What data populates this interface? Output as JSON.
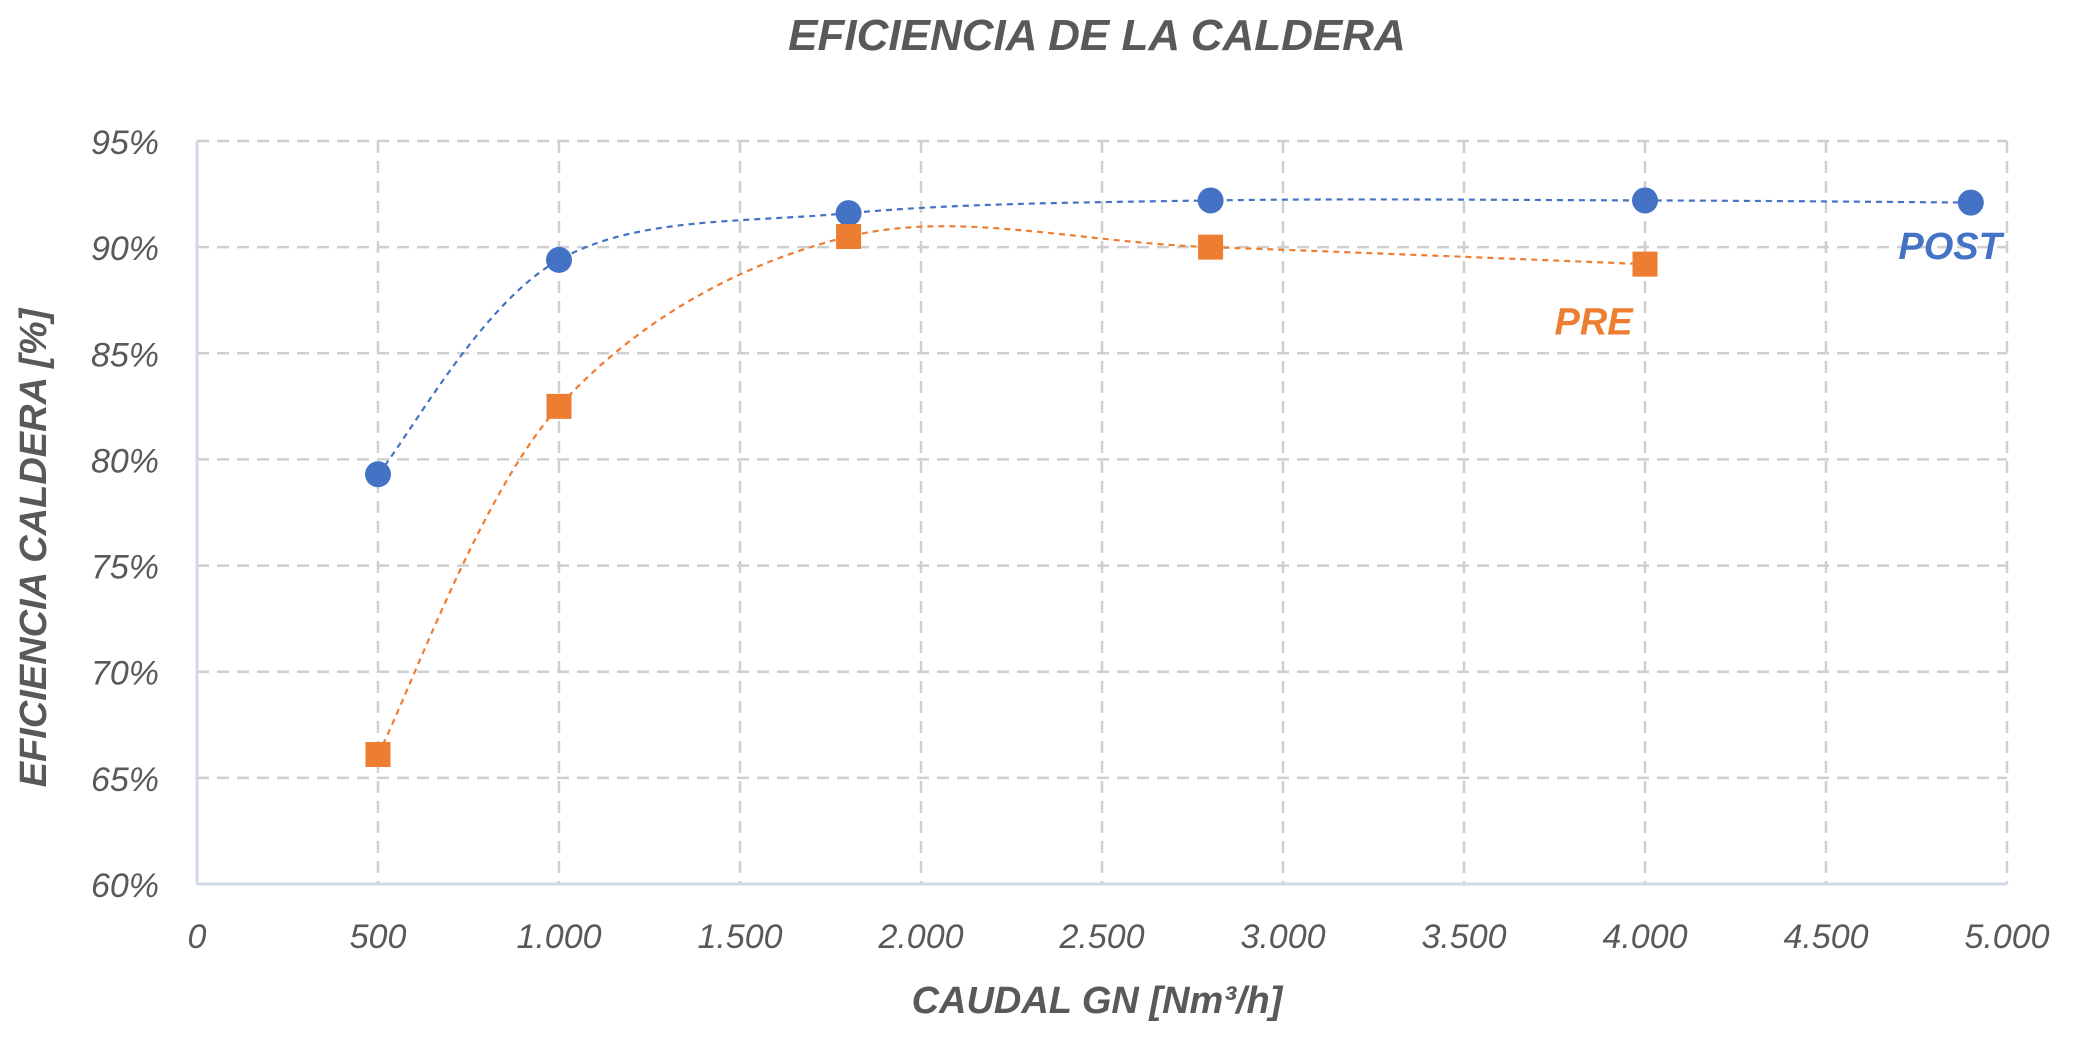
{
  "chart_data": {
    "type": "scatter",
    "title": "EFICIENCIA DE LA CALDERA",
    "xlabel": "CAUDAL GN [Nm³/h]",
    "ylabel": "EFICIENCIA CALDERA [%]",
    "xlim": [
      0,
      5000
    ],
    "ylim": [
      60,
      95
    ],
    "x_ticks": [
      0,
      500,
      1000,
      1500,
      2000,
      2500,
      3000,
      3500,
      4000,
      4500,
      5000
    ],
    "x_tick_labels": [
      "0",
      "500",
      "1.000",
      "1.500",
      "2.000",
      "2.500",
      "3.000",
      "3.500",
      "4.000",
      "4.500",
      "5.000"
    ],
    "y_ticks": [
      60,
      65,
      70,
      75,
      80,
      85,
      90,
      95
    ],
    "y_tick_labels": [
      "60%",
      "65%",
      "70%",
      "75%",
      "80%",
      "85%",
      "90%",
      "95%"
    ],
    "grid": true,
    "series": [
      {
        "name": "POST",
        "color": "#4472C4",
        "marker": "circle",
        "points": [
          {
            "x": 500,
            "y": 79.3
          },
          {
            "x": 1000,
            "y": 89.4
          },
          {
            "x": 1800,
            "y": 91.6
          },
          {
            "x": 2800,
            "y": 92.2
          },
          {
            "x": 4000,
            "y": 92.2
          },
          {
            "x": 4900,
            "y": 92.1
          }
        ]
      },
      {
        "name": "PRE",
        "color": "#ED7D31",
        "marker": "square",
        "points": [
          {
            "x": 500,
            "y": 66.1
          },
          {
            "x": 1000,
            "y": 82.5
          },
          {
            "x": 1800,
            "y": 90.5
          },
          {
            "x": 2800,
            "y": 90.0
          },
          {
            "x": 4000,
            "y": 89.2
          }
        ]
      }
    ]
  }
}
